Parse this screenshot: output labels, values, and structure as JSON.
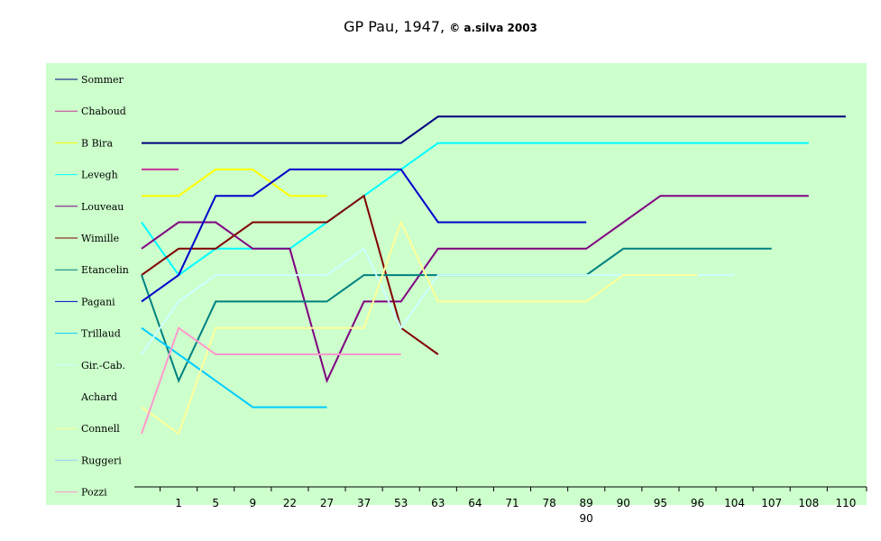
{
  "title_main": "GP Pau, 1947,",
  "title_copy": "© a.silva 2003",
  "colors": {
    "plot_bg": "#ccffcc",
    "axis": "#000000"
  },
  "chart_data": {
    "type": "line",
    "title": "GP Pau, 1947, © a.silva 2003",
    "categories": [
      "",
      "1",
      "5",
      "9",
      "22",
      "27",
      "37",
      "53",
      "63",
      "64",
      "71",
      "78",
      "89",
      "90",
      "95",
      "96",
      "104",
      "107",
      "108",
      "110"
    ],
    "secondary_label": {
      "text": "90",
      "under_category_index": 12
    },
    "y_reversed": true,
    "y_range": [
      1,
      14
    ],
    "legend_position": "left",
    "series": [
      {
        "name": "Sommer",
        "color": "#000080",
        "values": [
          3,
          3,
          3,
          3,
          3,
          3,
          3,
          3,
          2,
          2,
          2,
          2,
          2,
          2,
          2,
          2,
          2,
          2,
          2,
          2
        ]
      },
      {
        "name": "Chaboud",
        "color": "#cc3399",
        "values": [
          4,
          4,
          null,
          null,
          null,
          null,
          null,
          null,
          null,
          null,
          null,
          null,
          null,
          null,
          null,
          null,
          null,
          null,
          null,
          null
        ]
      },
      {
        "name": "B Bira",
        "color": "#ffff00",
        "values": [
          5,
          5,
          4,
          4,
          5,
          5,
          null,
          null,
          null,
          null,
          null,
          null,
          null,
          null,
          null,
          null,
          null,
          null,
          null,
          null
        ]
      },
      {
        "name": "Levegh",
        "color": "#00ffff",
        "values": [
          6,
          8,
          7,
          7,
          7,
          6,
          5,
          4,
          3,
          3,
          3,
          3,
          3,
          3,
          3,
          3,
          3,
          3,
          3,
          null
        ]
      },
      {
        "name": "Louveau",
        "color": "#800080",
        "values": [
          7,
          6,
          6,
          7,
          7,
          12,
          9,
          9,
          7,
          7,
          7,
          7,
          7,
          6,
          5,
          5,
          5,
          5,
          5,
          null
        ]
      },
      {
        "name": "Wimille",
        "color": "#800000",
        "values": [
          8,
          7,
          7,
          6,
          6,
          6,
          5,
          10,
          11,
          null,
          null,
          null,
          null,
          null,
          null,
          null,
          null,
          null,
          null,
          null
        ]
      },
      {
        "name": "Etancelin",
        "color": "#008080",
        "values": [
          8,
          12,
          9,
          9,
          9,
          9,
          8,
          8,
          8,
          8,
          8,
          8,
          8,
          7,
          7,
          7,
          7,
          7,
          null,
          null
        ]
      },
      {
        "name": "Pagani",
        "color": "#0000cc",
        "values": [
          9,
          8,
          5,
          5,
          4,
          4,
          4,
          4,
          6,
          6,
          6,
          6,
          6,
          null,
          null,
          null,
          null,
          null,
          null,
          null
        ]
      },
      {
        "name": "Trillaud",
        "color": "#00ccff",
        "values": [
          10,
          11,
          12,
          13,
          13,
          13,
          null,
          null,
          null,
          null,
          null,
          null,
          null,
          null,
          null,
          null,
          null,
          null,
          null,
          null
        ]
      },
      {
        "name": "Gir.-Cab.",
        "color": "#ccffff",
        "values": [
          11,
          9,
          8,
          8,
          8,
          8,
          7,
          10,
          8,
          8,
          8,
          8,
          8,
          8,
          8,
          8,
          8,
          null,
          null,
          null
        ]
      },
      {
        "name": "Achard",
        "color": "#ccffcc",
        "values": [
          12,
          null,
          null,
          null,
          null,
          null,
          null,
          null,
          null,
          null,
          null,
          null,
          null,
          null,
          null,
          null,
          null,
          null,
          null,
          null
        ]
      },
      {
        "name": "Connell",
        "color": "#ffff99",
        "values": [
          13,
          14,
          10,
          10,
          10,
          10,
          10,
          6,
          9,
          9,
          9,
          9,
          9,
          8,
          8,
          8,
          null,
          null,
          null,
          null
        ]
      },
      {
        "name": "Ruggeri",
        "color": "#99ccff",
        "values": [
          null,
          null,
          null,
          null,
          null,
          null,
          null,
          null,
          null,
          null,
          null,
          null,
          null,
          null,
          null,
          null,
          null,
          null,
          null,
          null
        ]
      },
      {
        "name": "Pozzi",
        "color": "#ff99cc",
        "values": [
          14,
          10,
          11,
          11,
          11,
          11,
          11,
          11,
          null,
          null,
          null,
          null,
          null,
          null,
          null,
          null,
          null,
          null,
          null,
          null
        ]
      }
    ]
  }
}
